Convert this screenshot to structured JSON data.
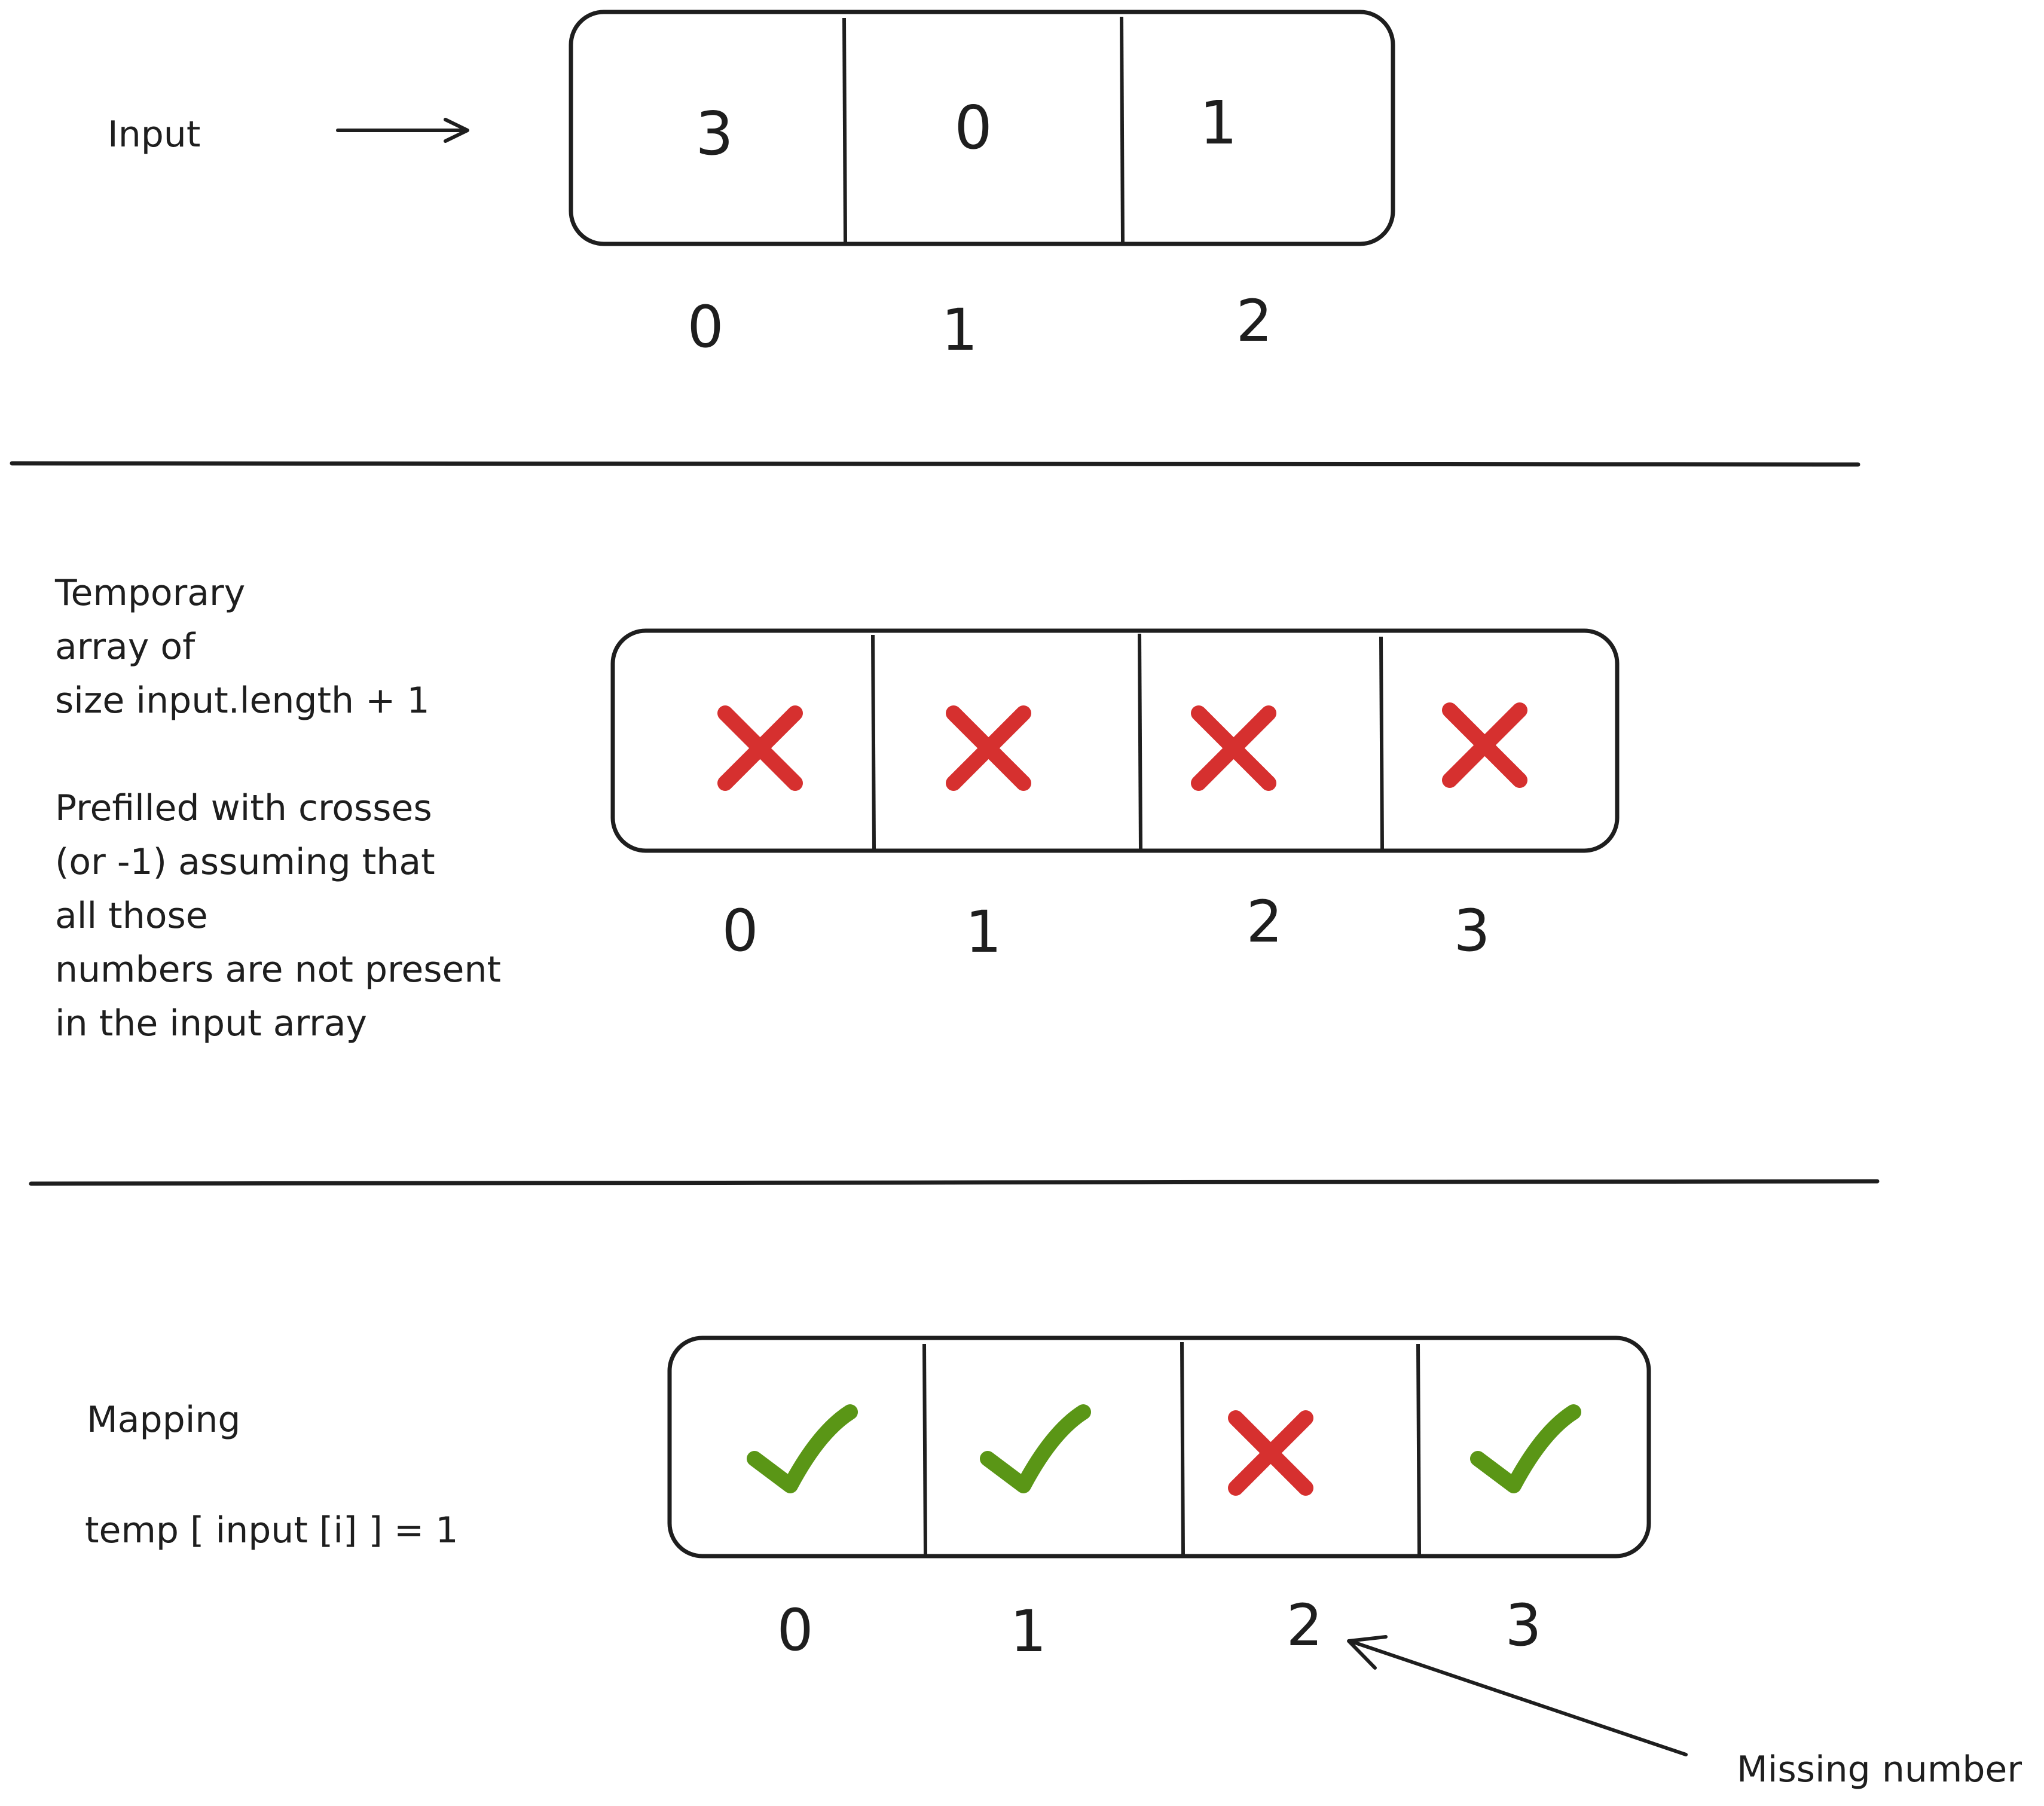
{
  "diagram": {
    "input": {
      "label": "Input",
      "values": [
        "3",
        "0",
        "1"
      ],
      "indices": [
        "0",
        "1",
        "2"
      ]
    },
    "temp": {
      "description": [
        "Temporary",
        "array of",
        "size input.length + 1",
        "",
        "Prefilled with crosses",
        "(or -1) assuming that",
        "all those",
        "numbers are not present",
        "in the input array"
      ],
      "cells": [
        "cross-icon",
        "cross-icon",
        "cross-icon",
        "cross-icon"
      ],
      "indices": [
        "0",
        "1",
        "2",
        "3"
      ]
    },
    "mapping": {
      "label": "Mapping",
      "formula": "temp [ input [i] ] = 1",
      "cells": [
        "check-icon",
        "check-icon",
        "cross-icon",
        "check-icon"
      ],
      "indices": [
        "0",
        "1",
        "2",
        "3"
      ],
      "annotation": "Missing number"
    },
    "colors": {
      "cross": "#d6302f",
      "check": "#5a9616",
      "ink": "#1e1e1e"
    }
  }
}
